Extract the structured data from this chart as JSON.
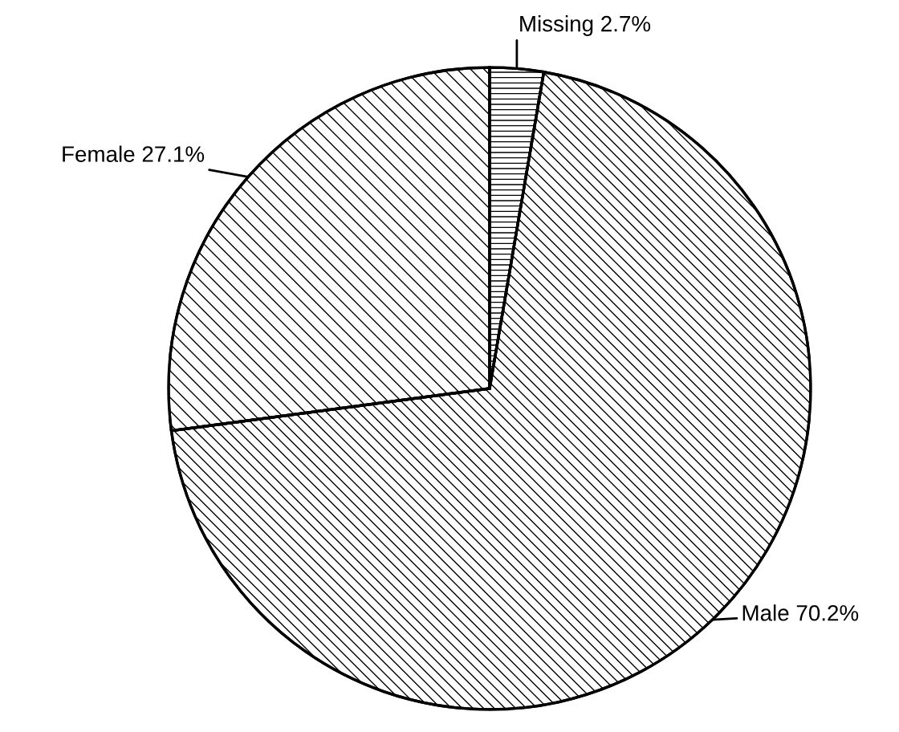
{
  "chart_data": {
    "type": "pie",
    "categories": [
      "Missing",
      "Male",
      "Female"
    ],
    "values": [
      2.7,
      70.2,
      27.1
    ],
    "value_labels": [
      "2.7%",
      "70.2%",
      "27.1%"
    ],
    "colors": [
      "#ffffff",
      "#ffffff",
      "#ffffff"
    ],
    "data_labels": true,
    "legend": false
  }
}
